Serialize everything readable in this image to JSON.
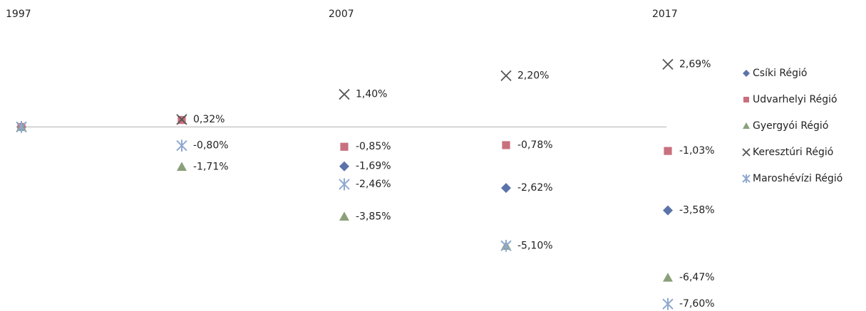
{
  "chart_data": {
    "type": "scatter",
    "categories": [
      "1997",
      null,
      "2007",
      null,
      "2017"
    ],
    "ylim": [
      -7.9,
      5.45
    ],
    "series": [
      {
        "name": "Csíki Régió",
        "color": "#5b73a8",
        "marker": "diamond",
        "values": [
          0,
          null,
          -1.69,
          -2.62,
          -3.58
        ],
        "value_labels": [
          null,
          null,
          "-1,69%",
          "-2,62%",
          "-3,58%"
        ]
      },
      {
        "name": "Udvarhelyi Régió",
        "color": "#c9707f",
        "marker": "square",
        "values": [
          0,
          0.3,
          -0.85,
          -0.78,
          -1.03
        ],
        "value_labels": [
          null,
          null,
          "-0,85%",
          "-0,78%",
          "-1,03%"
        ]
      },
      {
        "name": "Gyergyói Régió",
        "color": "#8aa07a",
        "marker": "triangle",
        "values": [
          0,
          -1.71,
          -3.85,
          -5.1,
          -6.47
        ],
        "value_labels": [
          null,
          "-1,71%",
          "-3,85%",
          null,
          "-6,47%"
        ]
      },
      {
        "name": "Keresztúri Régió",
        "color": "#555555",
        "marker": "x",
        "values": [
          0,
          0.32,
          1.4,
          2.2,
          2.69
        ],
        "value_labels": [
          null,
          "0,32%",
          "1,40%",
          "2,20%",
          "2,69%"
        ]
      },
      {
        "name": "Maroshévízi Régió",
        "color": "#8fa8d0",
        "marker": "asterisk",
        "values": [
          0,
          -0.8,
          -2.46,
          -5.1,
          -7.6
        ],
        "value_labels": [
          null,
          "-0,80%",
          "-2,46%",
          "-5,10%",
          "-7,60%"
        ]
      }
    ]
  }
}
